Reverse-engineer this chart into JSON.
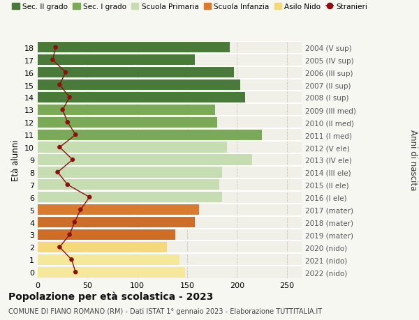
{
  "ages": [
    18,
    17,
    16,
    15,
    14,
    13,
    12,
    11,
    10,
    9,
    8,
    7,
    6,
    5,
    4,
    3,
    2,
    1,
    0
  ],
  "years": [
    "2004 (V sup)",
    "2005 (IV sup)",
    "2006 (III sup)",
    "2007 (II sup)",
    "2008 (I sup)",
    "2009 (III med)",
    "2010 (II med)",
    "2011 (I med)",
    "2012 (V ele)",
    "2013 (IV ele)",
    "2014 (III ele)",
    "2015 (II ele)",
    "2016 (I ele)",
    "2017 (mater)",
    "2018 (mater)",
    "2019 (mater)",
    "2020 (nido)",
    "2021 (nido)",
    "2022 (nido)"
  ],
  "bar_values": [
    193,
    158,
    197,
    203,
    208,
    178,
    180,
    225,
    190,
    215,
    185,
    182,
    185,
    162,
    158,
    138,
    130,
    142,
    148
  ],
  "bar_colors": [
    "#4a7a3a",
    "#4a7a3a",
    "#4a7a3a",
    "#4a7a3a",
    "#4a7a3a",
    "#7aaa58",
    "#7aaa58",
    "#7aaa58",
    "#c5ddb0",
    "#c5ddb0",
    "#c5ddb0",
    "#c5ddb0",
    "#c5ddb0",
    "#d97b2e",
    "#cc6e28",
    "#cc6e28",
    "#f5d87a",
    "#f5e89a",
    "#f5e89a"
  ],
  "stranieri_values": [
    18,
    15,
    28,
    22,
    32,
    25,
    30,
    38,
    22,
    35,
    20,
    30,
    52,
    43,
    37,
    32,
    22,
    34,
    38
  ],
  "stranieri_color": "#8b1010",
  "legend_labels": [
    "Sec. II grado",
    "Sec. I grado",
    "Scuola Primaria",
    "Scuola Infanzia",
    "Asilo Nido",
    "Stranieri"
  ],
  "legend_colors": [
    "#4a7a3a",
    "#7aaa58",
    "#c5ddb0",
    "#d97b2e",
    "#f5d87a",
    "#cc0000"
  ],
  "title": "Popolazione per età scolastica - 2023",
  "subtitle": "COMUNE DI FIANO ROMANO (RM) - Dati ISTAT 1° gennaio 2023 - Elaborazione TUTTITALIA.IT",
  "ylabel_left": "Età alunni",
  "ylabel_right": "Anni di nascita",
  "xlim": [
    0,
    265
  ],
  "xticks": [
    0,
    50,
    100,
    150,
    200,
    250
  ],
  "background_color": "#f7f7f2",
  "plot_bg_color": "#f0f0e8"
}
